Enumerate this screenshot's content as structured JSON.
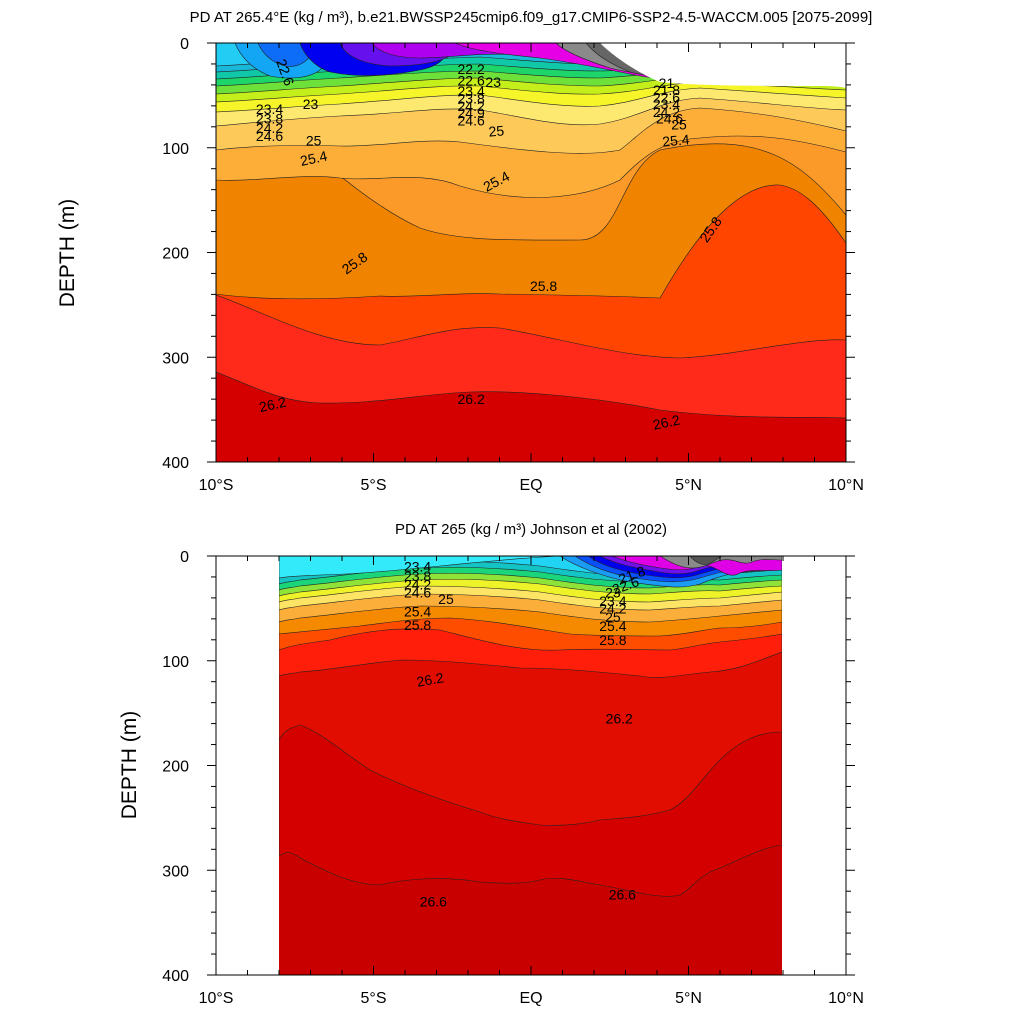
{
  "chart_data": [
    {
      "type": "contour",
      "title": "PD AT 265.4°E (kg / m³), b.e21.BWSSP245cmip6.f09_g17.CMIP6-SSP2-4.5-WACCM.005 [2075-2099]",
      "ylabel": "DEPTH (m)",
      "xlabel": "",
      "x_range": [
        -10,
        10
      ],
      "y_range": [
        0,
        400
      ],
      "y_reversed": true,
      "x_ticks": [
        {
          "value": -10,
          "label": "10°S"
        },
        {
          "value": -5,
          "label": "5°S"
        },
        {
          "value": 0,
          "label": "EQ"
        },
        {
          "value": 5,
          "label": "5°N"
        },
        {
          "value": 10,
          "label": "10°N"
        }
      ],
      "y_ticks": [
        {
          "value": 0,
          "label": "0"
        },
        {
          "value": 100,
          "label": "100"
        },
        {
          "value": 200,
          "label": "200"
        },
        {
          "value": 300,
          "label": "300"
        },
        {
          "value": 400,
          "label": "400"
        }
      ],
      "data_x_extent": [
        -10,
        10
      ],
      "contour_labels": [
        {
          "text": "22.6",
          "x": -7.8,
          "y": 28,
          "angle": 70
        },
        {
          "text": "23",
          "x": -7.0,
          "y": 58,
          "angle": 0
        },
        {
          "text": "23.4",
          "x": -8.3,
          "y": 63,
          "angle": 0
        },
        {
          "text": "23.8",
          "x": -8.3,
          "y": 72,
          "angle": 0
        },
        {
          "text": "24.2",
          "x": -8.3,
          "y": 81,
          "angle": 0
        },
        {
          "text": "24.6",
          "x": -8.3,
          "y": 89,
          "angle": 0
        },
        {
          "text": "25",
          "x": -6.9,
          "y": 93,
          "angle": 0
        },
        {
          "text": "25.4",
          "x": -6.9,
          "y": 110,
          "angle": -12
        },
        {
          "text": "22.2",
          "x": -1.9,
          "y": 25,
          "angle": 0
        },
        {
          "text": "22.6",
          "x": -1.9,
          "y": 36,
          "angle": 0
        },
        {
          "text": "23",
          "x": -1.2,
          "y": 37,
          "angle": 0
        },
        {
          "text": "23.4",
          "x": -1.9,
          "y": 46,
          "angle": 0
        },
        {
          "text": "23.8",
          "x": -1.9,
          "y": 53,
          "angle": 0
        },
        {
          "text": "24.2",
          "x": -1.9,
          "y": 60,
          "angle": 0
        },
        {
          "text": "24.9",
          "x": -1.9,
          "y": 67,
          "angle": 0
        },
        {
          "text": "24.6",
          "x": -1.9,
          "y": 74,
          "angle": 0
        },
        {
          "text": "25",
          "x": -1.1,
          "y": 84,
          "angle": -5
        },
        {
          "text": "25.4",
          "x": -1.1,
          "y": 132,
          "angle": -28
        },
        {
          "text": "25.8",
          "x": -5.6,
          "y": 210,
          "angle": -35
        },
        {
          "text": "25.8",
          "x": 0.4,
          "y": 232,
          "angle": 0
        },
        {
          "text": "25.8",
          "x": 5.7,
          "y": 178,
          "angle": -55
        },
        {
          "text": "21",
          "x": 4.3,
          "y": 38,
          "angle": 0
        },
        {
          "text": "21.8",
          "x": 4.3,
          "y": 45,
          "angle": 0
        },
        {
          "text": "22.6",
          "x": 4.3,
          "y": 52,
          "angle": 0
        },
        {
          "text": "23.4",
          "x": 4.3,
          "y": 58,
          "angle": 0
        },
        {
          "text": "24.2",
          "x": 4.3,
          "y": 66,
          "angle": 0
        },
        {
          "text": "24.6",
          "x": 4.4,
          "y": 72,
          "angle": 0
        },
        {
          "text": "25",
          "x": 4.7,
          "y": 78,
          "angle": 0
        },
        {
          "text": "25.4",
          "x": 4.6,
          "y": 93,
          "angle": -5
        },
        {
          "text": "26.2",
          "x": -8.2,
          "y": 345,
          "angle": -12
        },
        {
          "text": "26.2",
          "x": -1.9,
          "y": 340,
          "angle": 0
        },
        {
          "text": "26.2",
          "x": 4.3,
          "y": 362,
          "angle": -12
        }
      ]
    },
    {
      "type": "contour",
      "title": "PD AT 265 (kg / m³) Johnson et al (2002)",
      "ylabel": "DEPTH (m)",
      "xlabel": "",
      "x_range": [
        -10,
        10
      ],
      "y_range": [
        0,
        400
      ],
      "y_reversed": true,
      "x_ticks": [
        {
          "value": -10,
          "label": "10°S"
        },
        {
          "value": -5,
          "label": "5°S"
        },
        {
          "value": 0,
          "label": "EQ"
        },
        {
          "value": 5,
          "label": "5°N"
        },
        {
          "value": 10,
          "label": "10°N"
        }
      ],
      "y_ticks": [
        {
          "value": 0,
          "label": "0"
        },
        {
          "value": 100,
          "label": "100"
        },
        {
          "value": 200,
          "label": "200"
        },
        {
          "value": 300,
          "label": "300"
        },
        {
          "value": 400,
          "label": "400"
        }
      ],
      "data_x_extent": [
        -8,
        8
      ],
      "contour_labels": [
        {
          "text": "23.4",
          "x": -3.6,
          "y": 10,
          "angle": 0
        },
        {
          "text": "23.8",
          "x": -3.6,
          "y": 19,
          "angle": 0
        },
        {
          "text": "24.2",
          "x": -3.6,
          "y": 27,
          "angle": 0
        },
        {
          "text": "24.6",
          "x": -3.6,
          "y": 35,
          "angle": 0
        },
        {
          "text": "25",
          "x": -2.7,
          "y": 41,
          "angle": 0
        },
        {
          "text": "25.4",
          "x": -3.6,
          "y": 53,
          "angle": 0
        },
        {
          "text": "25.8",
          "x": -3.6,
          "y": 66,
          "angle": 0
        },
        {
          "text": "21.8",
          "x": 3.2,
          "y": 18,
          "angle": -20
        },
        {
          "text": "22.6",
          "x": 3.0,
          "y": 28,
          "angle": -20
        },
        {
          "text": "23",
          "x": 2.6,
          "y": 35,
          "angle": 0
        },
        {
          "text": "23.4",
          "x": 2.6,
          "y": 43,
          "angle": 0
        },
        {
          "text": "24.2",
          "x": 2.6,
          "y": 50,
          "angle": 0
        },
        {
          "text": "25",
          "x": 2.6,
          "y": 58,
          "angle": 0
        },
        {
          "text": "25.4",
          "x": 2.6,
          "y": 67,
          "angle": 0
        },
        {
          "text": "25.8",
          "x": 2.6,
          "y": 80,
          "angle": 0
        },
        {
          "text": "26.2",
          "x": -3.2,
          "y": 118,
          "angle": -10
        },
        {
          "text": "26.2",
          "x": 2.8,
          "y": 155,
          "angle": 0
        },
        {
          "text": "26.6",
          "x": -3.1,
          "y": 330,
          "angle": 0
        },
        {
          "text": "26.6",
          "x": 2.9,
          "y": 323,
          "angle": 0
        }
      ]
    }
  ]
}
